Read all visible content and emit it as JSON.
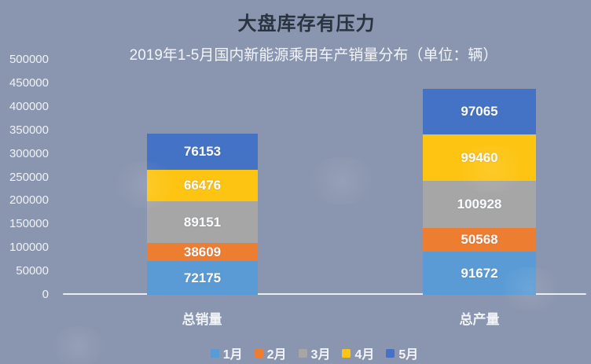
{
  "page": {
    "background_color": "#8A95AF"
  },
  "header": {
    "title": "大盘库存有压力",
    "title_color": "#2A3340",
    "subtitle": "2019年1-5月国内新能源乘用车产销量分布（单位：辆）",
    "subtitle_color": "#F1F4F8"
  },
  "chart_data": {
    "type": "bar",
    "stacked": true,
    "title": "大盘库存有压力",
    "subtitle": "2019年1-5月国内新能源乘用车产销量分布（单位：辆）",
    "unit_label": "辆",
    "categories": [
      "总销量",
      "总产量"
    ],
    "series": [
      {
        "name": "1月",
        "color": "#5B9BD5",
        "values": [
          72175,
          91672
        ]
      },
      {
        "name": "2月",
        "color": "#ED7D31",
        "values": [
          38609,
          50568
        ]
      },
      {
        "name": "3月",
        "color": "#A6A6A6",
        "values": [
          89151,
          100928
        ]
      },
      {
        "name": "4月",
        "color": "#FDC412",
        "values": [
          66476,
          99460
        ]
      },
      {
        "name": "5月",
        "color": "#4472C4",
        "values": [
          76153,
          97065
        ]
      }
    ],
    "ylim": [
      0,
      500000
    ],
    "yticks": [
      "500000",
      "450000",
      "400000",
      "350000",
      "300000",
      "250000",
      "200000",
      "150000",
      "100000",
      "50000",
      "0"
    ],
    "grid": false,
    "legend_position": "bottom",
    "data_labels": true
  }
}
